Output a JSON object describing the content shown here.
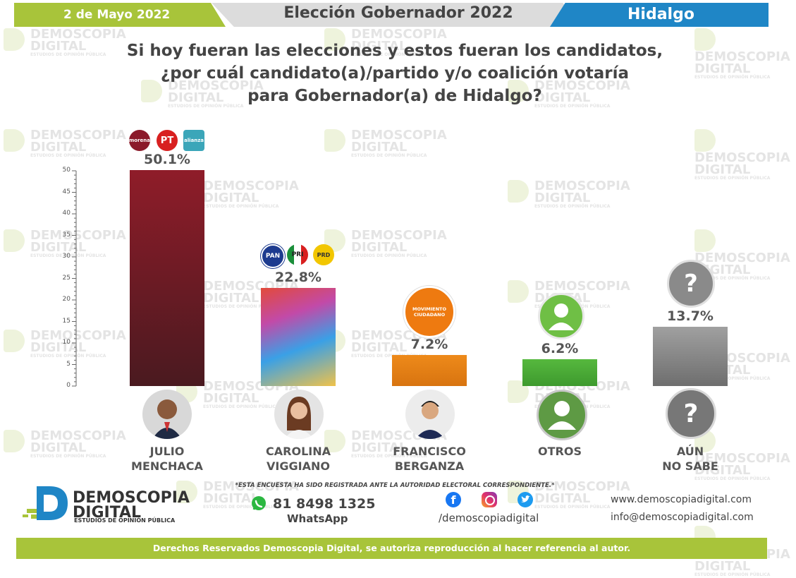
{
  "header": {
    "date": "2 de Mayo 2022",
    "title": "Elección Gobernador 2022",
    "state": "Hidalgo"
  },
  "question": {
    "line1": "Si hoy fueran las elecciones y estos fueran los candidatos,",
    "line2": "¿por cuál candidato(a)/partido y/o coalición votaría",
    "line3": "para Gobernador(a) de Hidalgo?"
  },
  "watermark": {
    "line1": "DEMOSCOPIA",
    "line2": "DIGITAL",
    "line3": "ESTUDIOS DE OPINIÓN PÚBLICA"
  },
  "chart_data": {
    "type": "bar",
    "categories": [
      "JULIO MENCHACA",
      "CAROLINA VIGGIANO",
      "FRANCISCO BERGANZA",
      "OTROS",
      "AÚN NO SABE"
    ],
    "values": [
      50.1,
      22.8,
      7.2,
      6.2,
      13.7
    ],
    "value_labels": [
      "50.1%",
      "22.8%",
      "7.2%",
      "6.2%",
      "13.7%"
    ],
    "name_lines": [
      [
        "JULIO",
        "MENCHACA"
      ],
      [
        "CAROLINA",
        "VIGGIANO"
      ],
      [
        "FRANCISCO",
        "BERGANZA"
      ],
      [
        "OTROS",
        ""
      ],
      [
        "AÚN",
        "NO SABE"
      ]
    ],
    "colors": [
      "#8b1a2a",
      "gradient-multicolor",
      "#e8901e",
      "#4caf3c",
      "#8a8a8a"
    ],
    "y_ticks": [
      0,
      5,
      10,
      15,
      20,
      25,
      30,
      35,
      40,
      45,
      50
    ],
    "ylim": [
      0,
      50
    ],
    "grid": false
  },
  "party_logos": {
    "menchaca": [
      "morena",
      "PT",
      "alianza"
    ],
    "viggiano": [
      "PAN",
      "PRI",
      "PRD"
    ],
    "berganza": [
      "MOVIMIENTO CIUDADANO"
    ],
    "unknown_symbol": "?"
  },
  "footer": {
    "note": "*ESTA ENCUESTA HA SIDO REGISTRADA ANTE LA AUTORIDAD ELECTORAL CORRESPONDIENTE.*",
    "brand_line1": "DEMOSCOPIA",
    "brand_line2": "DIGITAL",
    "brand_sub": "ESTUDIOS DE OPINIÓN PÚBLICA",
    "phone": "81 8498 1325",
    "whatsapp": "WhatsApp",
    "social_handle": "/demoscopiadigital",
    "website": "www.demoscopiadigital.com",
    "email": "info@demoscopiadigital.com",
    "rights": "Derechos Reservados Demoscopia Digital, se autoriza reproducción al hacer referencia al autor."
  }
}
